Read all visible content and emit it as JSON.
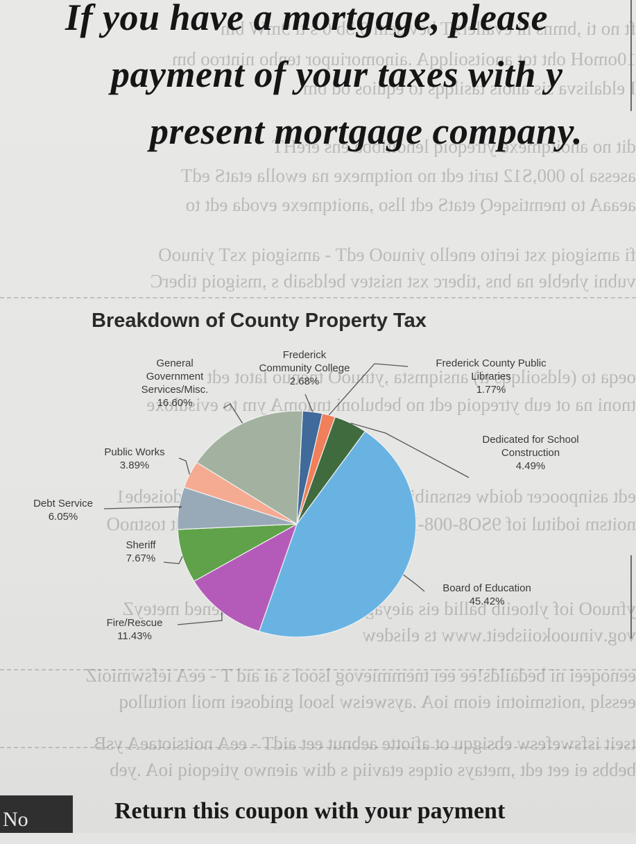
{
  "headline": {
    "line1": "If you have a mortgage, please",
    "line2": "payment of your taxes with y",
    "line3": "present mortgage company."
  },
  "chart_data": {
    "type": "pie",
    "title": "Breakdown of County Property Tax",
    "slices": [
      {
        "label": "Frederick Community College",
        "line1": "Frederick",
        "line2": "Community College",
        "pct_text": "2.68%",
        "value": 2.68,
        "color": "#3f6a9a"
      },
      {
        "label": "Frederick County Public Libraries",
        "line1": "Frederick County Public",
        "line2": "Libraries",
        "pct_text": "1.77%",
        "value": 1.77,
        "color": "#f07f5a"
      },
      {
        "label": "Dedicated for School Construction",
        "line1": "Dedicated for School",
        "line2": "Construction",
        "pct_text": "4.49%",
        "value": 4.49,
        "color": "#3f6b3f"
      },
      {
        "label": "Board of Education",
        "line1": "Board of Education",
        "line2": "",
        "pct_text": "45.42%",
        "value": 45.42,
        "color": "#69b3e3"
      },
      {
        "label": "Fire/Rescue",
        "line1": "Fire/Rescue",
        "line2": "",
        "pct_text": "11.43%",
        "value": 11.43,
        "color": "#b45bb9"
      },
      {
        "label": "Sheriff",
        "line1": "Sheriff",
        "line2": "",
        "pct_text": "7.67%",
        "value": 7.67,
        "color": "#5fa24a"
      },
      {
        "label": "Debt Service",
        "line1": "Debt Service",
        "line2": "",
        "pct_text": "6.05%",
        "value": 6.05,
        "color": "#98a9b8"
      },
      {
        "label": "Public Works",
        "line1": "Public Works",
        "line2": "",
        "pct_text": "3.89%",
        "value": 3.89,
        "color": "#f5aa92"
      },
      {
        "label": "General Government Services/Misc.",
        "line1": "General",
        "line2": "Government",
        "line3": "Services/Misc.",
        "pct_text": "16.60%",
        "value": 16.6,
        "color": "#a3b2a0"
      }
    ]
  },
  "footer": {
    "box_text": "No",
    "text": "Return this coupon with your payment"
  }
}
